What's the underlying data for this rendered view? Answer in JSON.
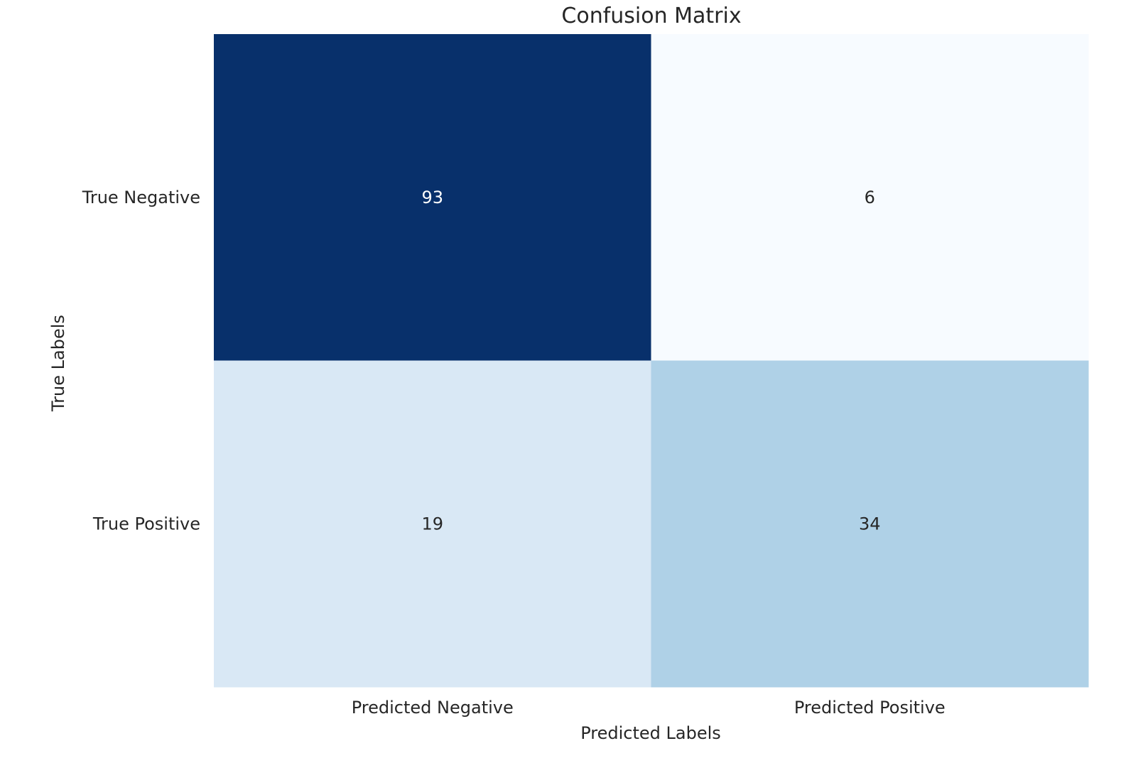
{
  "chart_data": {
    "type": "heatmap",
    "title": "Confusion Matrix",
    "xlabel": "Predicted Labels",
    "ylabel": "True Labels",
    "x_categories": [
      "Predicted Negative",
      "Predicted Positive"
    ],
    "y_categories": [
      "True Negative",
      "True Positive"
    ],
    "values": [
      [
        93,
        6
      ],
      [
        19,
        34
      ]
    ],
    "colormap": "Blues",
    "colorbar": false,
    "grid": false
  }
}
